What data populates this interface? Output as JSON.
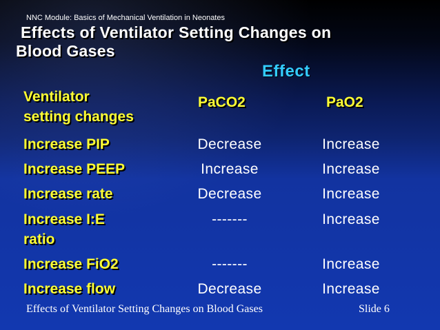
{
  "module_label": "NNC Module: Basics of Mechanical Ventilation in Neonates",
  "title_line1": "Effects of Ventilator Setting Changes on",
  "title_line2": "Blood Gases",
  "effect_label": "Effect",
  "header": {
    "setting_line1": "Ventilator",
    "setting_line2": "setting changes",
    "paco2": "PaCO2",
    "pao2": "PaO2"
  },
  "rows": [
    {
      "setting": "Increase PIP",
      "paco2": "Decrease",
      "pao2": "Increase"
    },
    {
      "setting": "Increase PEEP",
      "paco2": "Increase",
      "pao2": "Increase"
    },
    {
      "setting": "Increase rate",
      "paco2": "Decrease",
      "pao2": "Increase"
    },
    {
      "setting_line1": "Increase I:E",
      "setting_line2": "ratio",
      "paco2": "-------",
      "pao2": "Increase"
    },
    {
      "setting": "Increase FiO2",
      "paco2": "-------",
      "pao2": "Increase"
    },
    {
      "setting": "Increase flow",
      "paco2": "Decrease",
      "pao2": "Increase"
    }
  ],
  "footer": {
    "caption": "Effects of Ventilator Setting Changes on Blood Gases",
    "slide_number": "Slide 6"
  },
  "colors": {
    "setting_text": "#ffff33",
    "effect_text": "#33ccff",
    "value_text": "#ffffff"
  }
}
